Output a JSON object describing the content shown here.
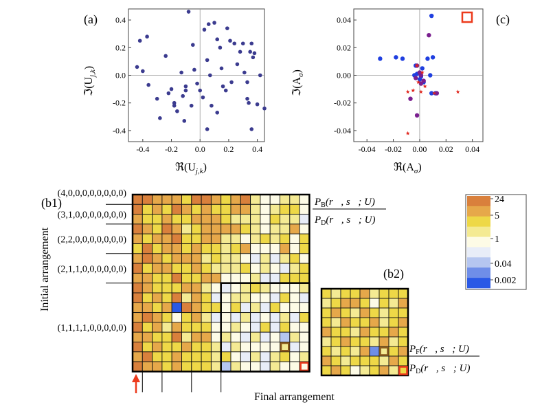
{
  "colors": {
    "scatter_a": "#3b3b8f",
    "blue": "#1f3fe0",
    "purple": "#7a1f8f",
    "star_red": "#e0231a",
    "box_red": "#ec3a1c",
    "box_brown": "#8a5a1e",
    "arrow": "#ec3a1c",
    "cmap": [
      "#2a59e6",
      "#6f8ee8",
      "#b5c6f0",
      "#e8edf8",
      "#fdfbe6",
      "#f4ea93",
      "#eed847",
      "#e6a84a",
      "#d9803c"
    ]
  },
  "chart_data": [
    {
      "type": "scatter",
      "panel_label": "(a)",
      "xlabel": "ℜ(U",
      "xlabel_sub": "j,k",
      "ylabel": "ℑ(U",
      "ylabel_sub": "j,k",
      "xlim": [
        -0.5,
        0.45
      ],
      "ylim": [
        -0.48,
        0.48
      ],
      "xticks": [
        -0.4,
        -0.2,
        0.0,
        0.2,
        0.4
      ],
      "yticks": [
        -0.4,
        -0.2,
        0.0,
        0.2,
        0.4
      ],
      "xtick_labels": [
        "-0.4",
        "-0.2",
        "0.0",
        "0.2",
        "0.4"
      ],
      "ytick_labels": [
        "-0.4",
        "-0.2",
        "0.0",
        "0.2",
        "0.4"
      ],
      "points": [
        [
          -0.42,
          0.25
        ],
        [
          -0.37,
          0.28
        ],
        [
          -0.44,
          0.06
        ],
        [
          -0.4,
          0.03
        ],
        [
          -0.36,
          -0.07
        ],
        [
          -0.28,
          -0.31
        ],
        [
          -0.24,
          0.14
        ],
        [
          -0.22,
          -0.13
        ],
        [
          -0.2,
          -0.1
        ],
        [
          -0.18,
          -0.2
        ],
        [
          -0.16,
          -0.26
        ],
        [
          -0.13,
          0.02
        ],
        [
          -0.11,
          -0.33
        ],
        [
          -0.1,
          -0.11
        ],
        [
          -0.08,
          0.46
        ],
        [
          -0.06,
          -0.22
        ],
        [
          -0.05,
          0.22
        ],
        [
          -0.04,
          0.04
        ],
        [
          -0.02,
          -0.06
        ],
        [
          0.0,
          -0.11
        ],
        [
          0.02,
          -0.16
        ],
        [
          0.03,
          0.33
        ],
        [
          0.05,
          -0.39
        ],
        [
          0.06,
          0.37
        ],
        [
          0.07,
          0.0
        ],
        [
          0.08,
          -0.22
        ],
        [
          0.1,
          0.38
        ],
        [
          0.12,
          0.26
        ],
        [
          0.14,
          0.2
        ],
        [
          0.15,
          0.05
        ],
        [
          0.16,
          -0.08
        ],
        [
          0.18,
          -0.11
        ],
        [
          0.19,
          0.34
        ],
        [
          0.21,
          0.25
        ],
        [
          0.22,
          -0.05
        ],
        [
          0.24,
          0.23
        ],
        [
          0.26,
          0.08
        ],
        [
          0.28,
          0.17
        ],
        [
          0.3,
          0.23
        ],
        [
          0.31,
          0.02
        ],
        [
          0.33,
          -0.05
        ],
        [
          0.33,
          -0.17
        ],
        [
          0.34,
          -0.2
        ],
        [
          0.35,
          0.17
        ],
        [
          0.36,
          0.23
        ],
        [
          0.37,
          0.13
        ],
        [
          0.38,
          0.16
        ],
        [
          0.4,
          -0.21
        ],
        [
          0.42,
          0.0
        ],
        [
          0.45,
          -0.24
        ],
        [
          -0.18,
          -0.22
        ],
        [
          0.12,
          -0.27
        ],
        [
          -0.3,
          -0.17
        ],
        [
          0.05,
          0.11
        ],
        [
          -0.12,
          -0.15
        ],
        [
          0.36,
          -0.39
        ],
        [
          -0.1,
          -0.08
        ]
      ]
    },
    {
      "type": "scatter",
      "panel_label": "(c)",
      "xlabel": "ℜ(A",
      "xlabel_sub": "σ",
      "ylabel": "ℑ(A",
      "ylabel_sub": "σ",
      "xlim": [
        -0.05,
        0.048
      ],
      "ylim": [
        -0.048,
        0.048
      ],
      "xticks": [
        -0.04,
        -0.02,
        0.0,
        0.02,
        0.04
      ],
      "yticks": [
        -0.04,
        -0.02,
        0.0,
        0.02,
        0.04
      ],
      "xtick_labels": [
        "-0.04",
        "-0.02",
        "0.00",
        "0.02",
        "0.04"
      ],
      "ytick_labels": [
        "-0.04",
        "-0.02",
        "0.00",
        "0.02",
        "0.04"
      ],
      "blue_points": [
        [
          0.009,
          0.043
        ],
        [
          -0.03,
          0.012
        ],
        [
          -0.018,
          0.013
        ],
        [
          -0.013,
          0.012
        ],
        [
          0.006,
          0.012
        ],
        [
          0.01,
          0.013
        ],
        [
          -0.003,
          0.007
        ],
        [
          0.002,
          0.005
        ],
        [
          0.001,
          -0.001
        ],
        [
          -0.002,
          0.001
        ],
        [
          0.0,
          -0.003
        ],
        [
          0.003,
          -0.005
        ],
        [
          0.008,
          0.0
        ],
        [
          0.009,
          -0.013
        ],
        [
          0.012,
          -0.013
        ],
        [
          -0.004,
          0.0
        ]
      ],
      "purple_points": [
        [
          0.007,
          0.029
        ],
        [
          -0.002,
          0.007
        ],
        [
          0.001,
          0.0
        ],
        [
          0.0,
          0.002
        ],
        [
          -0.003,
          -0.002
        ],
        [
          -0.007,
          -0.017
        ],
        [
          -0.002,
          -0.029
        ],
        [
          0.001,
          -0.006
        ],
        [
          0.013,
          -0.013
        ],
        [
          0.003,
          -0.004
        ]
      ],
      "stars": [
        [
          -0.002,
          0.007
        ],
        [
          -0.001,
          -0.005
        ],
        [
          -0.009,
          -0.012
        ],
        [
          -0.005,
          -0.011
        ],
        [
          0.001,
          -0.012
        ],
        [
          0.011,
          -0.013
        ],
        [
          0.029,
          -0.012
        ],
        [
          -0.009,
          -0.042
        ],
        [
          0.002,
          0.002
        ],
        [
          0.004,
          -0.008
        ]
      ],
      "marker_box": [
        0.036,
        0.042
      ]
    },
    {
      "type": "heatmap",
      "panel_label": "(b1)",
      "rows": 18,
      "cols": 18,
      "row_group_labels": [
        "(4,0,0,0,0,0,0,0,0)",
        "(3,1,0,0,0,0,0,0,0)",
        "(2,2,0,0,0,0,0,0,0)",
        "(2,1,1,0,0,0,0,0,0)",
        "(1,1,1,1,0,0,0,0,0)"
      ],
      "row_group_starts": [
        0,
        1,
        3,
        6,
        9
      ],
      "col_group_starts": [
        0,
        1,
        3,
        6,
        9
      ],
      "sub_box_start": 9,
      "brown_cell": [
        15,
        15
      ],
      "red_cell": [
        17,
        17
      ],
      "ratio_numerator": "P",
      "ratio_numerator_sub": "B",
      "ratio_args": "(r⃗, s⃗; U)",
      "ratio_denominator": "P",
      "ratio_denominator_sub": "D",
      "ylabel": "Initial arrangement",
      "xlabel": "Final arrangement",
      "levels": [
        "887776887678544554",
        "867687676677545664",
        "766766777655546553",
        "876875677776545574",
        "767786677554565646",
        "686776766567444746",
        "787677756554353564",
        "867766765556454356",
        "776686677444533666",
        "876667754345654445",
        "867685763455443643",
        "776708766463536444",
        "787646753435343536",
        "867576664454363644",
        "776685774543534254",
        "867667665354444534",
        "786676665643535645",
        "877676665254435444"
      ]
    },
    {
      "type": "heatmap",
      "panel_label": "(b2)",
      "rows": 9,
      "cols": 9,
      "brown_cell": [
        6,
        6
      ],
      "red_cell": [
        8,
        8
      ],
      "ratio_numerator": "P",
      "ratio_numerator_sub": "F",
      "ratio_args": "(r⃗, s⃗; U)",
      "ratio_denominator": "P",
      "ratio_denominator_sub": "D",
      "levels": [
        "656675666",
        "567764657",
        "676576566",
        "657667567",
        "766576676",
        "567665756",
        "656571567",
        "765666576",
        "676456756"
      ]
    }
  ],
  "colorbar": {
    "tick_labels": [
      "24",
      "5",
      "1",
      "0.04",
      "0.002"
    ],
    "colors": [
      "#d9803c",
      "#e6a84a",
      "#eed847",
      "#f4ea93",
      "#fdfbe6",
      "#e8edf8",
      "#b5c6f0",
      "#6f8ee8",
      "#2a59e6"
    ]
  }
}
